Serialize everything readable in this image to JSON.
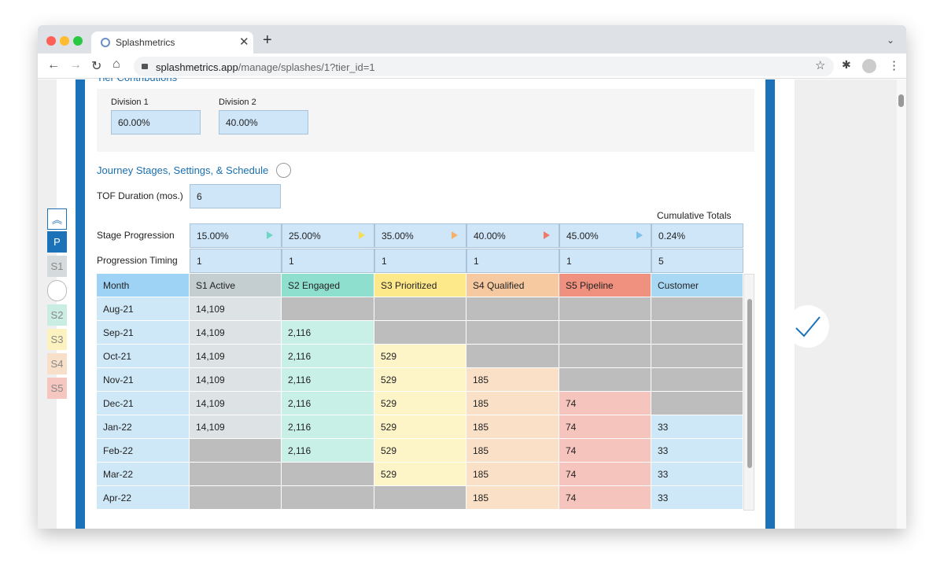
{
  "browser": {
    "tab_title": "Splashmetrics",
    "url_host": "splashmetrics.app",
    "url_path": "/manage/splashes/1?tier_id=1"
  },
  "sidebar": {
    "items": [
      "P",
      "S1",
      "S2",
      "S3",
      "S4",
      "S5"
    ]
  },
  "tier_section": {
    "title": "Tier Contributions",
    "divisions": [
      {
        "label": "Division 1",
        "value": "60.00%"
      },
      {
        "label": "Division 2",
        "value": "40.00%"
      }
    ]
  },
  "journey": {
    "title": "Journey Stages, Settings, & Schedule",
    "tof_label": "TOF Duration (mos.)",
    "tof_value": "6",
    "cumulative_label": "Cumulative Totals",
    "stage_progression": {
      "label": "Stage Progression",
      "values": [
        "15.00%",
        "25.00%",
        "35.00%",
        "40.00%",
        "45.00%",
        "0.24%"
      ]
    },
    "progression_timing": {
      "label": "Progression Timing",
      "values": [
        "1",
        "1",
        "1",
        "1",
        "1",
        "5"
      ]
    }
  },
  "table": {
    "headers": [
      "Month",
      "S1 Active",
      "S2 Engaged",
      "S3 Prioritized",
      "S4 Qualified",
      "S5 Pipeline",
      "Customer"
    ],
    "rows": [
      [
        "Aug-21",
        "14,109",
        null,
        null,
        null,
        null,
        null
      ],
      [
        "Sep-21",
        "14,109",
        "2,116",
        null,
        null,
        null,
        null
      ],
      [
        "Oct-21",
        "14,109",
        "2,116",
        "529",
        null,
        null,
        null
      ],
      [
        "Nov-21",
        "14,109",
        "2,116",
        "529",
        "185",
        null,
        null
      ],
      [
        "Dec-21",
        "14,109",
        "2,116",
        "529",
        "185",
        "74",
        null
      ],
      [
        "Jan-22",
        "14,109",
        "2,116",
        "529",
        "185",
        "74",
        "33"
      ],
      [
        "Feb-22",
        null,
        "2,116",
        "529",
        "185",
        "74",
        "33"
      ],
      [
        "Mar-22",
        null,
        null,
        "529",
        "185",
        "74",
        "33"
      ],
      [
        "Apr-22",
        null,
        null,
        null,
        "185",
        "74",
        "33"
      ]
    ]
  }
}
